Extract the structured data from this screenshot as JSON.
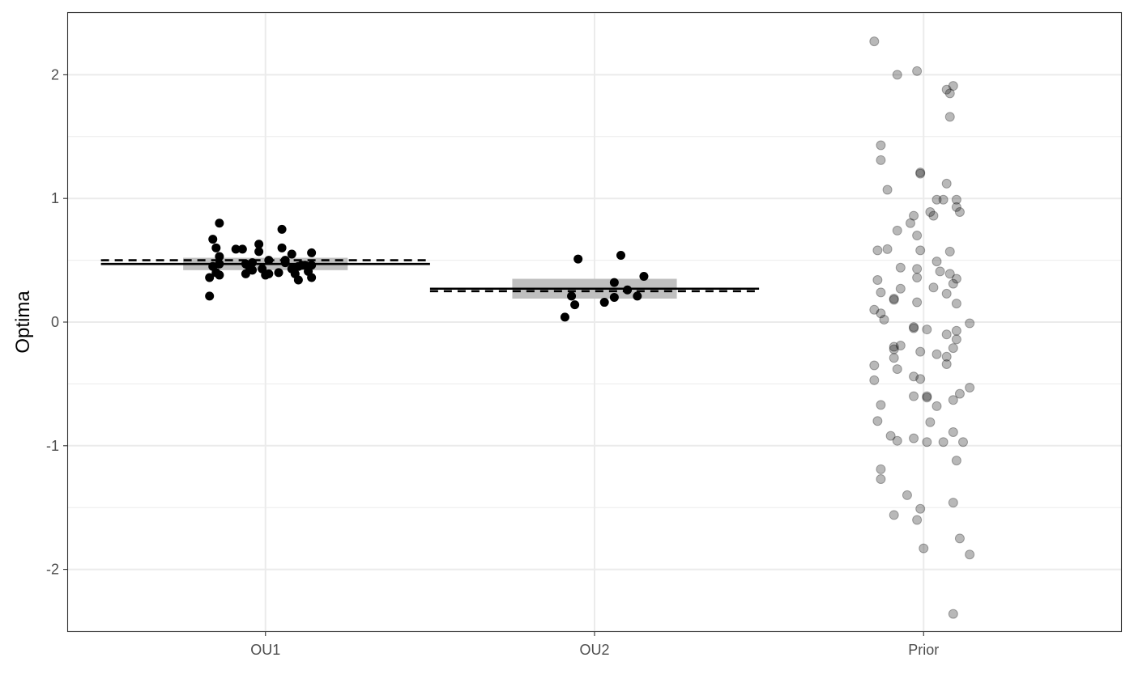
{
  "chart_data": {
    "type": "scatter",
    "ylabel": "Optima",
    "xlabel": "",
    "categories": [
      "OU1",
      "OU2",
      "Prior"
    ],
    "ylim": [
      -2.5,
      2.5
    ],
    "y_ticks": [
      -2,
      -1,
      0,
      1,
      2
    ],
    "grid": true,
    "colors": {
      "points": "#000000",
      "prior_points": "#999999",
      "ribbon": "#bfbfbf",
      "grid": "#ebebeb",
      "panel_border": "#333333"
    },
    "groups": [
      {
        "category": "OU1",
        "mean": 0.47,
        "reference": 0.5,
        "interval": [
          0.42,
          0.52
        ],
        "points": [
          {
            "x": -0.14,
            "y": 0.8
          },
          {
            "x": -0.15,
            "y": 0.6
          },
          {
            "x": -0.14,
            "y": 0.53
          },
          {
            "x": -0.09,
            "y": 0.59
          },
          {
            "x": -0.07,
            "y": 0.59
          },
          {
            "x": -0.02,
            "y": 0.57
          },
          {
            "x": -0.02,
            "y": 0.63
          },
          {
            "x": 0.05,
            "y": 0.75
          },
          {
            "x": 0.05,
            "y": 0.6
          },
          {
            "x": 0.08,
            "y": 0.55
          },
          {
            "x": 0.14,
            "y": 0.56
          },
          {
            "x": -0.16,
            "y": 0.67
          },
          {
            "x": -0.14,
            "y": 0.47
          },
          {
            "x": -0.16,
            "y": 0.45
          },
          {
            "x": -0.15,
            "y": 0.4
          },
          {
            "x": -0.14,
            "y": 0.38
          },
          {
            "x": -0.17,
            "y": 0.36
          },
          {
            "x": -0.17,
            "y": 0.21
          },
          {
            "x": -0.06,
            "y": 0.47
          },
          {
            "x": -0.05,
            "y": 0.45
          },
          {
            "x": -0.04,
            "y": 0.42
          },
          {
            "x": -0.06,
            "y": 0.39
          },
          {
            "x": -0.04,
            "y": 0.48
          },
          {
            "x": -0.01,
            "y": 0.43
          },
          {
            "x": 0.0,
            "y": 0.38
          },
          {
            "x": 0.01,
            "y": 0.5
          },
          {
            "x": 0.01,
            "y": 0.39
          },
          {
            "x": 0.04,
            "y": 0.4
          },
          {
            "x": 0.06,
            "y": 0.48
          },
          {
            "x": 0.06,
            "y": 0.5
          },
          {
            "x": 0.08,
            "y": 0.43
          },
          {
            "x": 0.09,
            "y": 0.39
          },
          {
            "x": 0.1,
            "y": 0.45
          },
          {
            "x": 0.11,
            "y": 0.46
          },
          {
            "x": 0.13,
            "y": 0.41
          },
          {
            "x": 0.14,
            "y": 0.46
          },
          {
            "x": 0.14,
            "y": 0.36
          },
          {
            "x": 0.1,
            "y": 0.34
          },
          {
            "x": 0.12,
            "y": 0.46
          }
        ]
      },
      {
        "category": "OU2",
        "mean": 0.27,
        "reference": 0.25,
        "interval": [
          0.19,
          0.35
        ],
        "points": [
          {
            "x": -0.05,
            "y": 0.51
          },
          {
            "x": 0.08,
            "y": 0.54
          },
          {
            "x": 0.15,
            "y": 0.37
          },
          {
            "x": 0.06,
            "y": 0.32
          },
          {
            "x": 0.1,
            "y": 0.26
          },
          {
            "x": -0.07,
            "y": 0.21
          },
          {
            "x": 0.06,
            "y": 0.2
          },
          {
            "x": 0.13,
            "y": 0.21
          },
          {
            "x": 0.03,
            "y": 0.16
          },
          {
            "x": -0.06,
            "y": 0.14
          },
          {
            "x": -0.09,
            "y": 0.04
          }
        ]
      },
      {
        "category": "Prior",
        "points": [
          {
            "x": -0.15,
            "y": 2.27
          },
          {
            "x": -0.08,
            "y": 2.0
          },
          {
            "x": -0.02,
            "y": 2.03
          },
          {
            "x": 0.07,
            "y": 1.88
          },
          {
            "x": 0.08,
            "y": 1.85
          },
          {
            "x": 0.09,
            "y": 1.91
          },
          {
            "x": 0.08,
            "y": 1.66
          },
          {
            "x": -0.13,
            "y": 1.43
          },
          {
            "x": -0.13,
            "y": 1.31
          },
          {
            "x": -0.11,
            "y": 1.07
          },
          {
            "x": -0.01,
            "y": 1.21
          },
          {
            "x": -0.01,
            "y": 1.2
          },
          {
            "x": 0.07,
            "y": 1.12
          },
          {
            "x": 0.06,
            "y": 0.99
          },
          {
            "x": 0.1,
            "y": 0.99
          },
          {
            "x": 0.04,
            "y": 0.99
          },
          {
            "x": 0.02,
            "y": 0.89
          },
          {
            "x": 0.03,
            "y": 0.86
          },
          {
            "x": 0.1,
            "y": 0.93
          },
          {
            "x": 0.11,
            "y": 0.89
          },
          {
            "x": -0.03,
            "y": 0.86
          },
          {
            "x": -0.04,
            "y": 0.8
          },
          {
            "x": -0.08,
            "y": 0.74
          },
          {
            "x": -0.02,
            "y": 0.7
          },
          {
            "x": -0.14,
            "y": 0.58
          },
          {
            "x": -0.11,
            "y": 0.59
          },
          {
            "x": -0.01,
            "y": 0.58
          },
          {
            "x": 0.08,
            "y": 0.57
          },
          {
            "x": 0.04,
            "y": 0.49
          },
          {
            "x": -0.07,
            "y": 0.44
          },
          {
            "x": -0.02,
            "y": 0.43
          },
          {
            "x": 0.05,
            "y": 0.41
          },
          {
            "x": 0.08,
            "y": 0.39
          },
          {
            "x": -0.02,
            "y": 0.36
          },
          {
            "x": -0.14,
            "y": 0.34
          },
          {
            "x": 0.1,
            "y": 0.35
          },
          {
            "x": 0.09,
            "y": 0.31
          },
          {
            "x": 0.03,
            "y": 0.28
          },
          {
            "x": -0.07,
            "y": 0.27
          },
          {
            "x": -0.13,
            "y": 0.24
          },
          {
            "x": 0.07,
            "y": 0.23
          },
          {
            "x": -0.09,
            "y": 0.19
          },
          {
            "x": -0.09,
            "y": 0.18
          },
          {
            "x": -0.02,
            "y": 0.16
          },
          {
            "x": 0.1,
            "y": 0.15
          },
          {
            "x": -0.15,
            "y": 0.1
          },
          {
            "x": -0.13,
            "y": 0.07
          },
          {
            "x": -0.12,
            "y": 0.02
          },
          {
            "x": 0.14,
            "y": -0.01
          },
          {
            "x": -0.03,
            "y": -0.04
          },
          {
            "x": -0.03,
            "y": -0.05
          },
          {
            "x": 0.01,
            "y": -0.06
          },
          {
            "x": 0.1,
            "y": -0.07
          },
          {
            "x": 0.07,
            "y": -0.1
          },
          {
            "x": 0.1,
            "y": -0.14
          },
          {
            "x": -0.07,
            "y": -0.19
          },
          {
            "x": -0.09,
            "y": -0.2
          },
          {
            "x": -0.09,
            "y": -0.22
          },
          {
            "x": 0.09,
            "y": -0.21
          },
          {
            "x": -0.01,
            "y": -0.24
          },
          {
            "x": 0.04,
            "y": -0.26
          },
          {
            "x": 0.07,
            "y": -0.28
          },
          {
            "x": -0.09,
            "y": -0.29
          },
          {
            "x": 0.07,
            "y": -0.34
          },
          {
            "x": -0.15,
            "y": -0.35
          },
          {
            "x": -0.08,
            "y": -0.38
          },
          {
            "x": -0.03,
            "y": -0.44
          },
          {
            "x": -0.01,
            "y": -0.46
          },
          {
            "x": -0.15,
            "y": -0.47
          },
          {
            "x": 0.14,
            "y": -0.53
          },
          {
            "x": 0.11,
            "y": -0.58
          },
          {
            "x": -0.03,
            "y": -0.6
          },
          {
            "x": 0.01,
            "y": -0.6
          },
          {
            "x": 0.01,
            "y": -0.61
          },
          {
            "x": 0.09,
            "y": -0.63
          },
          {
            "x": -0.13,
            "y": -0.67
          },
          {
            "x": 0.04,
            "y": -0.68
          },
          {
            "x": 0.02,
            "y": -0.81
          },
          {
            "x": -0.14,
            "y": -0.8
          },
          {
            "x": -0.1,
            "y": -0.92
          },
          {
            "x": -0.03,
            "y": -0.94
          },
          {
            "x": -0.08,
            "y": -0.96
          },
          {
            "x": 0.01,
            "y": -0.97
          },
          {
            "x": 0.06,
            "y": -0.97
          },
          {
            "x": 0.09,
            "y": -0.89
          },
          {
            "x": 0.12,
            "y": -0.97
          },
          {
            "x": 0.1,
            "y": -1.12
          },
          {
            "x": -0.13,
            "y": -1.19
          },
          {
            "x": -0.13,
            "y": -1.27
          },
          {
            "x": -0.05,
            "y": -1.4
          },
          {
            "x": -0.09,
            "y": -1.56
          },
          {
            "x": -0.02,
            "y": -1.6
          },
          {
            "x": -0.01,
            "y": -1.51
          },
          {
            "x": 0.09,
            "y": -1.46
          },
          {
            "x": 0.11,
            "y": -1.75
          },
          {
            "x": 0.0,
            "y": -1.83
          },
          {
            "x": 0.14,
            "y": -1.88
          },
          {
            "x": 0.09,
            "y": -2.36
          }
        ]
      }
    ]
  }
}
